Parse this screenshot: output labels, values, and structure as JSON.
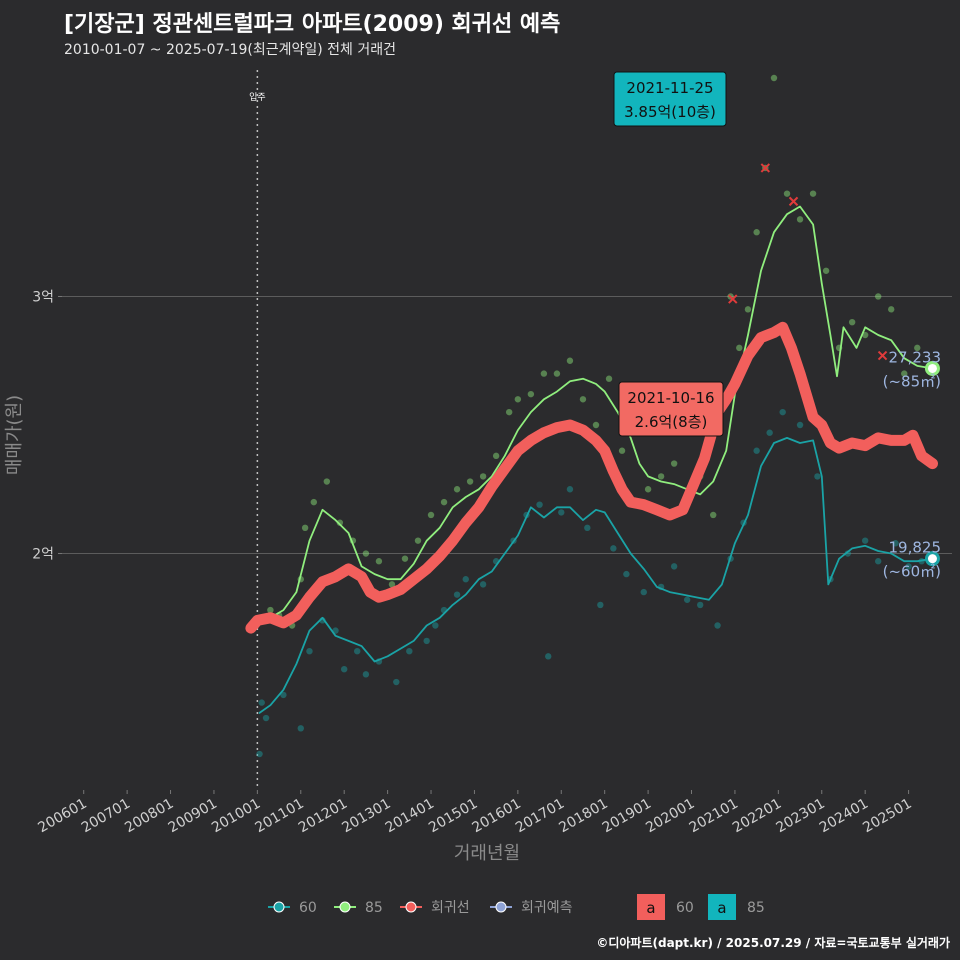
{
  "title": "[기장군] 정관센트럴파크 아파트(2009) 회귀선 예측",
  "subtitle": "2010-01-07 ~ 2025-07-19(최근계약일) 전체 거래건",
  "credit": "©디아파트(dapt.kr) / 2025.07.29 / 자료=국토교통부 실거래가",
  "colors": {
    "background": "#2b2b2d",
    "s60": "#1aa3a6",
    "s85": "#90ee7e",
    "regression": "#f25f5c",
    "forecast": "#8fa3d6",
    "callout_85": "#12b5bd",
    "callout_reg": "#f26a63"
  },
  "chart_data": {
    "type": "line",
    "title": "[기장군] 정관센트럴파크 아파트(2009) 회귀선 예측",
    "xlabel": "거래년월",
    "ylabel": "매매가(원)",
    "x_ticks": [
      "200601",
      "200701",
      "200801",
      "200901",
      "201001",
      "201101",
      "201201",
      "201301",
      "201401",
      "201501",
      "201601",
      "201701",
      "201801",
      "201901",
      "202001",
      "202101",
      "202201",
      "202301",
      "202401",
      "202501"
    ],
    "y_ticks": [
      {
        "label": "2억",
        "value": 2.0
      },
      {
        "label": "3억",
        "value": 3.0
      }
    ],
    "xlim": [
      2005.5,
      2026.0
    ],
    "ylim": [
      1.08,
      3.92
    ],
    "move_in": {
      "x": 2010.0,
      "label": "입주"
    },
    "series": [
      {
        "name": "60",
        "points": [
          [
            2010.05,
            1.38
          ],
          [
            2010.3,
            1.41
          ],
          [
            2010.6,
            1.47
          ],
          [
            2010.9,
            1.57
          ],
          [
            2011.2,
            1.7
          ],
          [
            2011.5,
            1.75
          ],
          [
            2011.8,
            1.68
          ],
          [
            2012.1,
            1.66
          ],
          [
            2012.4,
            1.64
          ],
          [
            2012.7,
            1.58
          ],
          [
            2013.0,
            1.6
          ],
          [
            2013.3,
            1.63
          ],
          [
            2013.6,
            1.66
          ],
          [
            2013.9,
            1.72
          ],
          [
            2014.2,
            1.75
          ],
          [
            2014.5,
            1.8
          ],
          [
            2014.8,
            1.84
          ],
          [
            2015.1,
            1.9
          ],
          [
            2015.4,
            1.93
          ],
          [
            2015.7,
            2.0
          ],
          [
            2016.0,
            2.07
          ],
          [
            2016.3,
            2.18
          ],
          [
            2016.6,
            2.14
          ],
          [
            2016.9,
            2.18
          ],
          [
            2017.2,
            2.18
          ],
          [
            2017.5,
            2.13
          ],
          [
            2017.8,
            2.17
          ],
          [
            2018.0,
            2.16
          ],
          [
            2018.3,
            2.08
          ],
          [
            2018.6,
            2.0
          ],
          [
            2018.9,
            1.94
          ],
          [
            2019.2,
            1.87
          ],
          [
            2019.5,
            1.85
          ],
          [
            2019.8,
            1.84
          ],
          [
            2020.1,
            1.83
          ],
          [
            2020.4,
            1.82
          ],
          [
            2020.7,
            1.88
          ],
          [
            2021.0,
            2.04
          ],
          [
            2021.3,
            2.15
          ],
          [
            2021.6,
            2.34
          ],
          [
            2021.9,
            2.43
          ],
          [
            2022.2,
            2.45
          ],
          [
            2022.5,
            2.43
          ],
          [
            2022.8,
            2.44
          ],
          [
            2023.0,
            2.3
          ],
          [
            2023.15,
            1.88
          ],
          [
            2023.4,
            1.98
          ],
          [
            2023.7,
            2.02
          ],
          [
            2024.0,
            2.03
          ],
          [
            2024.3,
            2.01
          ],
          [
            2024.6,
            2.0
          ],
          [
            2024.9,
            1.97
          ],
          [
            2025.2,
            1.97
          ],
          [
            2025.55,
            1.98
          ]
        ]
      },
      {
        "name": "85",
        "points": [
          [
            2010.3,
            1.75
          ],
          [
            2010.6,
            1.78
          ],
          [
            2010.9,
            1.85
          ],
          [
            2011.2,
            2.05
          ],
          [
            2011.5,
            2.17
          ],
          [
            2011.8,
            2.13
          ],
          [
            2012.1,
            2.08
          ],
          [
            2012.4,
            1.95
          ],
          [
            2012.7,
            1.92
          ],
          [
            2013.0,
            1.9
          ],
          [
            2013.3,
            1.9
          ],
          [
            2013.6,
            1.96
          ],
          [
            2013.9,
            2.05
          ],
          [
            2014.2,
            2.1
          ],
          [
            2014.5,
            2.18
          ],
          [
            2014.8,
            2.22
          ],
          [
            2015.1,
            2.25
          ],
          [
            2015.4,
            2.3
          ],
          [
            2015.7,
            2.38
          ],
          [
            2016.0,
            2.48
          ],
          [
            2016.3,
            2.55
          ],
          [
            2016.6,
            2.6
          ],
          [
            2016.9,
            2.63
          ],
          [
            2017.2,
            2.67
          ],
          [
            2017.5,
            2.68
          ],
          [
            2017.8,
            2.66
          ],
          [
            2018.0,
            2.63
          ],
          [
            2018.3,
            2.55
          ],
          [
            2018.6,
            2.45
          ],
          [
            2018.8,
            2.35
          ],
          [
            2019.0,
            2.3
          ],
          [
            2019.3,
            2.28
          ],
          [
            2019.6,
            2.27
          ],
          [
            2019.9,
            2.25
          ],
          [
            2020.2,
            2.23
          ],
          [
            2020.5,
            2.28
          ],
          [
            2020.8,
            2.4
          ],
          [
            2021.0,
            2.62
          ],
          [
            2021.3,
            2.85
          ],
          [
            2021.6,
            3.1
          ],
          [
            2021.9,
            3.25
          ],
          [
            2022.2,
            3.32
          ],
          [
            2022.5,
            3.35
          ],
          [
            2022.8,
            3.28
          ],
          [
            2023.0,
            3.05
          ],
          [
            2023.2,
            2.85
          ],
          [
            2023.35,
            2.69
          ],
          [
            2023.5,
            2.88
          ],
          [
            2023.8,
            2.8
          ],
          [
            2024.0,
            2.88
          ],
          [
            2024.3,
            2.85
          ],
          [
            2024.6,
            2.83
          ],
          [
            2024.9,
            2.76
          ],
          [
            2025.2,
            2.73
          ],
          [
            2025.55,
            2.72
          ]
        ]
      },
      {
        "name": "회귀선",
        "points": [
          [
            2009.85,
            1.71
          ],
          [
            2010.0,
            1.74
          ],
          [
            2010.3,
            1.75
          ],
          [
            2010.6,
            1.73
          ],
          [
            2010.9,
            1.76
          ],
          [
            2011.2,
            1.83
          ],
          [
            2011.5,
            1.89
          ],
          [
            2011.8,
            1.91
          ],
          [
            2012.1,
            1.94
          ],
          [
            2012.4,
            1.91
          ],
          [
            2012.6,
            1.85
          ],
          [
            2012.8,
            1.83
          ],
          [
            2013.0,
            1.84
          ],
          [
            2013.3,
            1.86
          ],
          [
            2013.6,
            1.9
          ],
          [
            2013.9,
            1.94
          ],
          [
            2014.2,
            1.99
          ],
          [
            2014.5,
            2.05
          ],
          [
            2014.8,
            2.12
          ],
          [
            2015.1,
            2.18
          ],
          [
            2015.4,
            2.26
          ],
          [
            2015.7,
            2.33
          ],
          [
            2016.0,
            2.4
          ],
          [
            2016.3,
            2.44
          ],
          [
            2016.6,
            2.47
          ],
          [
            2016.9,
            2.49
          ],
          [
            2017.2,
            2.5
          ],
          [
            2017.5,
            2.48
          ],
          [
            2017.8,
            2.44
          ],
          [
            2018.0,
            2.4
          ],
          [
            2018.2,
            2.32
          ],
          [
            2018.4,
            2.25
          ],
          [
            2018.6,
            2.2
          ],
          [
            2018.9,
            2.19
          ],
          [
            2019.2,
            2.17
          ],
          [
            2019.5,
            2.15
          ],
          [
            2019.8,
            2.17
          ],
          [
            2020.0,
            2.25
          ],
          [
            2020.3,
            2.37
          ],
          [
            2020.6,
            2.55
          ],
          [
            2020.8,
            2.6
          ],
          [
            2021.0,
            2.66
          ],
          [
            2021.3,
            2.77
          ],
          [
            2021.6,
            2.84
          ],
          [
            2021.9,
            2.86
          ],
          [
            2022.1,
            2.88
          ],
          [
            2022.3,
            2.8
          ],
          [
            2022.5,
            2.7
          ],
          [
            2022.8,
            2.53
          ],
          [
            2023.0,
            2.5
          ],
          [
            2023.2,
            2.43
          ],
          [
            2023.4,
            2.41
          ],
          [
            2023.7,
            2.43
          ],
          [
            2024.0,
            2.42
          ],
          [
            2024.3,
            2.45
          ],
          [
            2024.6,
            2.44
          ],
          [
            2024.9,
            2.44
          ],
          [
            2025.1,
            2.46
          ],
          [
            2025.3,
            2.38
          ],
          [
            2025.55,
            2.35
          ]
        ]
      }
    ],
    "scatter_sample": {
      "s60": [
        [
          2010.05,
          1.22
        ],
        [
          2010.1,
          1.42
        ],
        [
          2010.2,
          1.36
        ],
        [
          2010.6,
          1.45
        ],
        [
          2011.0,
          1.32
        ],
        [
          2011.2,
          1.62
        ],
        [
          2011.5,
          1.74
        ],
        [
          2011.8,
          1.7
        ],
        [
          2012.0,
          1.55
        ],
        [
          2012.3,
          1.62
        ],
        [
          2012.5,
          1.53
        ],
        [
          2012.8,
          1.58
        ],
        [
          2013.2,
          1.5
        ],
        [
          2013.5,
          1.62
        ],
        [
          2013.9,
          1.66
        ],
        [
          2014.1,
          1.72
        ],
        [
          2014.3,
          1.78
        ],
        [
          2014.6,
          1.84
        ],
        [
          2014.8,
          1.9
        ],
        [
          2015.2,
          1.88
        ],
        [
          2015.5,
          1.97
        ],
        [
          2015.9,
          2.05
        ],
        [
          2016.2,
          2.15
        ],
        [
          2016.5,
          2.19
        ],
        [
          2016.7,
          1.6
        ],
        [
          2017.0,
          2.16
        ],
        [
          2017.2,
          2.25
        ],
        [
          2017.6,
          2.1
        ],
        [
          2017.9,
          1.8
        ],
        [
          2018.2,
          2.02
        ],
        [
          2018.5,
          1.92
        ],
        [
          2018.9,
          1.85
        ],
        [
          2019.3,
          1.87
        ],
        [
          2019.6,
          1.95
        ],
        [
          2019.9,
          1.82
        ],
        [
          2020.2,
          1.8
        ],
        [
          2020.6,
          1.72
        ],
        [
          2020.9,
          1.98
        ],
        [
          2021.2,
          2.12
        ],
        [
          2021.5,
          2.4
        ],
        [
          2021.8,
          2.47
        ],
        [
          2022.1,
          2.55
        ],
        [
          2022.5,
          2.5
        ],
        [
          2022.9,
          2.3
        ],
        [
          2023.2,
          1.9
        ],
        [
          2023.6,
          2.0
        ],
        [
          2024.0,
          2.05
        ],
        [
          2024.3,
          1.97
        ],
        [
          2024.7,
          2.04
        ],
        [
          2025.0,
          1.95
        ],
        [
          2025.3,
          1.97
        ]
      ],
      "s85": [
        [
          2010.3,
          1.78
        ],
        [
          2010.5,
          1.76
        ],
        [
          2010.8,
          1.72
        ],
        [
          2011.0,
          1.9
        ],
        [
          2011.1,
          2.1
        ],
        [
          2011.3,
          2.2
        ],
        [
          2011.6,
          2.28
        ],
        [
          2011.9,
          2.12
        ],
        [
          2012.2,
          2.05
        ],
        [
          2012.5,
          2.0
        ],
        [
          2012.8,
          1.97
        ],
        [
          2013.1,
          1.88
        ],
        [
          2013.4,
          1.98
        ],
        [
          2013.7,
          2.05
        ],
        [
          2014.0,
          2.15
        ],
        [
          2014.3,
          2.2
        ],
        [
          2014.6,
          2.25
        ],
        [
          2014.9,
          2.28
        ],
        [
          2015.2,
          2.3
        ],
        [
          2015.5,
          2.38
        ],
        [
          2015.8,
          2.55
        ],
        [
          2016.0,
          2.6
        ],
        [
          2016.3,
          2.62
        ],
        [
          2016.6,
          2.7
        ],
        [
          2016.9,
          2.7
        ],
        [
          2017.2,
          2.75
        ],
        [
          2017.5,
          2.6
        ],
        [
          2017.8,
          2.5
        ],
        [
          2018.1,
          2.68
        ],
        [
          2018.4,
          2.4
        ],
        [
          2018.7,
          2.52
        ],
        [
          2019.0,
          2.25
        ],
        [
          2019.3,
          2.3
        ],
        [
          2019.6,
          2.35
        ],
        [
          2019.9,
          2.2
        ],
        [
          2020.2,
          2.3
        ],
        [
          2020.5,
          2.15
        ],
        [
          2020.9,
          3.0
        ],
        [
          2021.1,
          2.8
        ],
        [
          2021.3,
          2.95
        ],
        [
          2021.5,
          3.25
        ],
        [
          2021.7,
          3.5
        ],
        [
          2021.9,
          3.85
        ],
        [
          2022.2,
          3.4
        ],
        [
          2022.5,
          3.3
        ],
        [
          2022.8,
          3.4
        ],
        [
          2023.1,
          3.1
        ],
        [
          2023.4,
          2.8
        ],
        [
          2023.7,
          2.9
        ],
        [
          2024.0,
          2.85
        ],
        [
          2024.3,
          3.0
        ],
        [
          2024.6,
          2.95
        ],
        [
          2024.9,
          2.7
        ],
        [
          2025.2,
          2.8
        ]
      ]
    },
    "outliers_x": [
      [
        2020.95,
        2.99
      ],
      [
        2021.7,
        3.5
      ],
      [
        2022.35,
        3.37
      ],
      [
        2024.4,
        2.77
      ]
    ],
    "callouts": [
      {
        "date": "2021-11-25",
        "price": "3.85억(10층)",
        "x": 2021.9,
        "y": 3.85,
        "series": "85"
      },
      {
        "date": "2021-10-16",
        "price": "2.6억(8층)",
        "x": 2021.8,
        "y": 2.6,
        "series": "회귀선"
      }
    ],
    "end_labels": [
      {
        "value": "27,233",
        "area": "(~85㎡)",
        "x": 2025.55,
        "y": 2.72
      },
      {
        "value": "19,825",
        "area": "(~60㎡)",
        "x": 2025.55,
        "y": 1.98
      }
    ],
    "legend": {
      "placement": "bottom",
      "items": [
        "60",
        "85",
        "회귀선",
        "회귀예측"
      ],
      "fill_items": [
        {
          "symbol": "a",
          "label": "60"
        },
        {
          "symbol": "a",
          "label": "85"
        }
      ]
    }
  }
}
